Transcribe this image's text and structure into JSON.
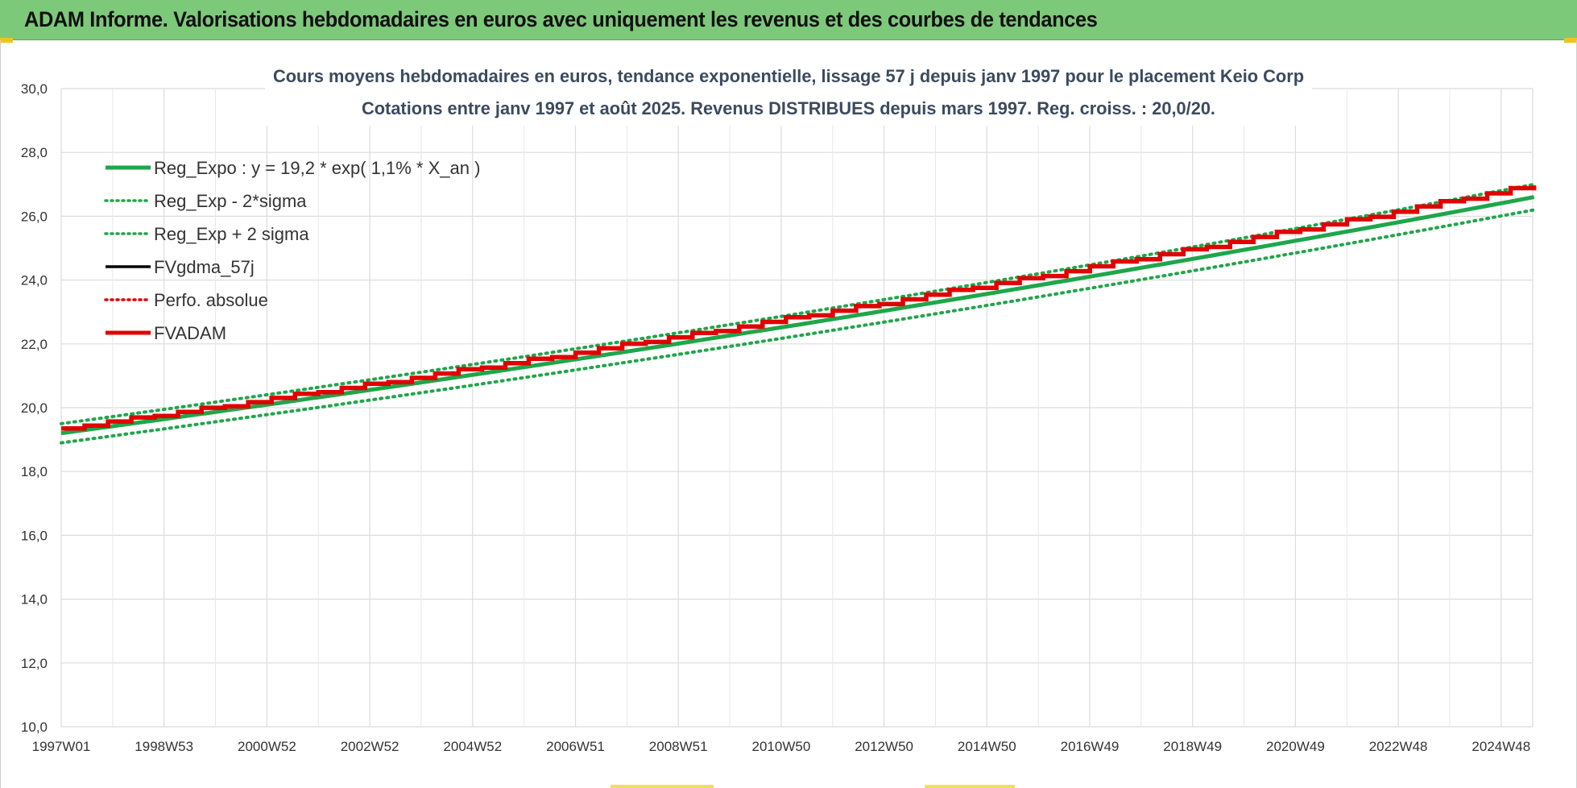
{
  "banner": {
    "title": "ADAM Informe. Valorisations hebdomadaires en euros avec uniquement les revenus et des courbes de tendances",
    "background": "#7dc97a"
  },
  "chart_data": {
    "type": "line",
    "title_line1": "Cours moyens hebdomadaires en euros, tendance exponentielle, lissage 57 j depuis janv 1997 pour le placement Keio Corp",
    "title_line2": "Cotations entre janv 1997 et août 2025.  Revenus DISTRIBUES depuis mars 1997. Reg. croiss. : 20,0/20.",
    "ylim": [
      10,
      30
    ],
    "y_ticks": [
      "10,0",
      "12,0",
      "14,0",
      "16,0",
      "18,0",
      "20,0",
      "22,0",
      "24,0",
      "26,0",
      "28,0",
      "30,0"
    ],
    "x_ticks": [
      "1997W01",
      "1998W53",
      "2000W52",
      "2002W52",
      "2004W52",
      "2006W51",
      "2008W51",
      "2010W50",
      "2012W50",
      "2014W50",
      "2016W49",
      "2018W49",
      "2020W49",
      "2022W48",
      "2024W48"
    ],
    "x_range": [
      "1997W01",
      "2025W35"
    ],
    "grid": true,
    "legend_position": "top-left",
    "legend": [
      {
        "label": "Reg_Expo : y = 19,2 * exp( 1,1% *  X_an )",
        "color": "#1fa64a",
        "style": "solid-thick"
      },
      {
        "label": "Reg_Exp - 2*sigma",
        "color": "#1fa64a",
        "style": "dotted"
      },
      {
        "label": "Reg_Exp + 2 sigma",
        "color": "#1fa64a",
        "style": "dotted"
      },
      {
        "label": "FVgdma_57j",
        "color": "#000000",
        "style": "solid"
      },
      {
        "label": "Perfo. absolue",
        "color": "#e00000",
        "style": "dotted"
      },
      {
        "label": "FVADAM",
        "color": "#e00000",
        "style": "solid-thick"
      }
    ],
    "series": [
      {
        "name": "Reg_Expo : y = 19,2 * exp( 1,1% *  X_an )",
        "color": "#1fa64a",
        "x_years": [
          0,
          28.64
        ],
        "y": [
          19.2,
          26.6
        ],
        "model": "exponential"
      },
      {
        "name": "Reg_Exp - 2*sigma",
        "color": "#1fa64a",
        "x_years": [
          0,
          28.64
        ],
        "y": [
          18.9,
          26.2
        ],
        "model": "exponential"
      },
      {
        "name": "Reg_Exp + 2 sigma",
        "color": "#1fa64a",
        "x_years": [
          0,
          28.64
        ],
        "y": [
          19.5,
          27.0
        ],
        "model": "exponential"
      },
      {
        "name": "FVgdma_57j",
        "color": "#000000",
        "x_years": [
          0,
          28.64
        ],
        "y": [
          19.35,
          27.0
        ],
        "model": "step"
      },
      {
        "name": "FVADAM",
        "color": "#e00000",
        "x_years": [
          0,
          28.64
        ],
        "y": [
          19.35,
          27.0
        ],
        "model": "step"
      }
    ]
  }
}
